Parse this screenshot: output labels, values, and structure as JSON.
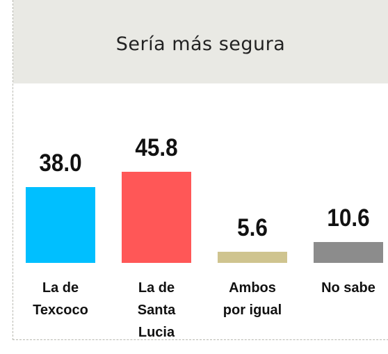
{
  "chart_data": {
    "type": "bar",
    "title": "Sería más segura",
    "categories": [
      "La de\nTexcoco",
      "La de\nSanta\nLucia",
      "Ambos\npor igual",
      "No sabe"
    ],
    "values": [
      38.0,
      45.8,
      5.6,
      10.6
    ],
    "value_labels": [
      "38.0",
      "45.8",
      "5.6",
      "10.6"
    ],
    "colors": [
      "#00bfff",
      "#ff5757",
      "#cfc48f",
      "#8c8c8c"
    ]
  }
}
